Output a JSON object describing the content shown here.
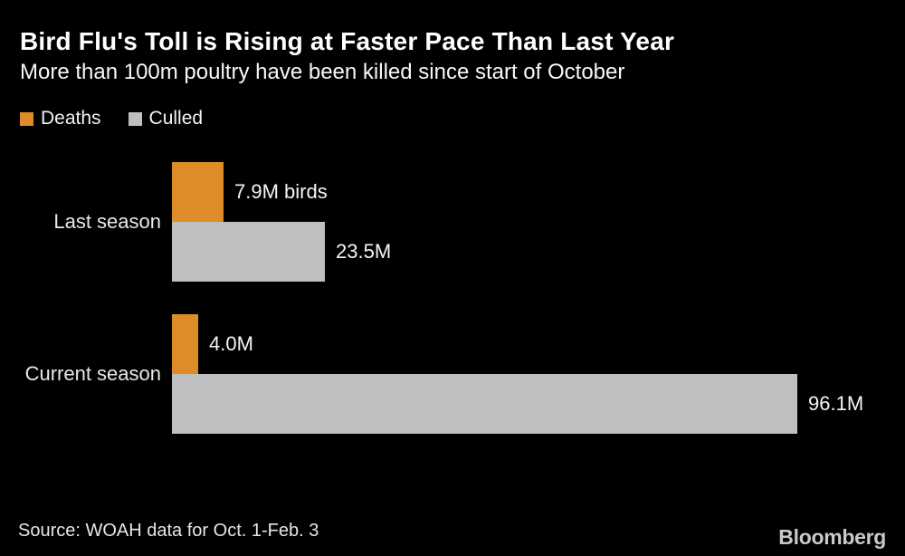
{
  "header": {
    "title": "Bird Flu's Toll is Rising at Faster Pace Than Last Year",
    "subtitle": "More than 100m poultry have been killed since start of October"
  },
  "legend": [
    {
      "label": "Deaths",
      "color": "#de8c28"
    },
    {
      "label": "Culled",
      "color": "#bfbfbf"
    }
  ],
  "chart_data": {
    "type": "bar",
    "orientation": "horizontal",
    "background": "#000000",
    "grid": false,
    "legend_position": "top-left",
    "categories": [
      "Last season",
      "Current season"
    ],
    "series": [
      {
        "name": "Deaths",
        "color": "#de8c28",
        "values": [
          7.9,
          4.0
        ]
      },
      {
        "name": "Culled",
        "color": "#bfbfbf",
        "values": [
          23.5,
          96.1
        ]
      }
    ],
    "value_labels": [
      [
        "7.9M birds",
        "23.5M"
      ],
      [
        "4.0M",
        "96.1M"
      ]
    ],
    "unit": "millions of birds",
    "xlim": [
      0,
      96.1
    ]
  },
  "footer": {
    "source": "Source: WOAH data for Oct. 1-Feb. 3",
    "brand": "Bloomberg"
  }
}
